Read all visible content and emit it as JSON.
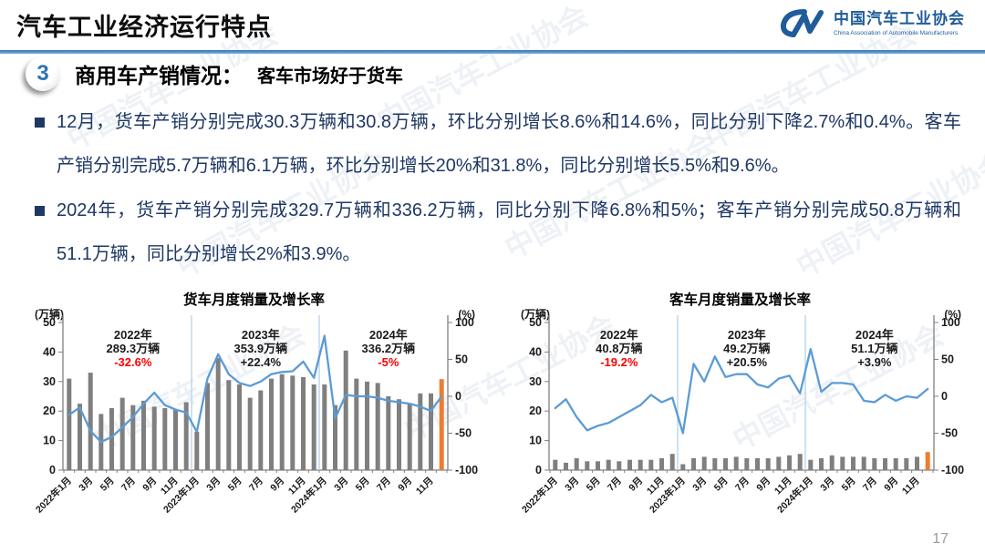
{
  "header": {
    "title": "汽车工业经济运行特点",
    "logo": {
      "org_cn": "中国汽车工业协会",
      "org_en": "China Association of Automobile Manufacturers"
    }
  },
  "section": {
    "number": "3",
    "heading_main": "商用车产销情况：",
    "heading_sub": "客车市场好于货车"
  },
  "bullets": [
    {
      "text": "12月，货车产销分别完成30.3万辆和30.8万辆，环比分别增长8.6%和14.6%，同比分别下降2.7%和0.4%。客车产销分别完成5.7万辆和6.1万辆，环比分别增长20%和31.8%，同比分别增长5.5%和9.6%。"
    },
    {
      "text": "2024年，货车产销分别完成329.7万辆和336.2万辆，同比分别下降6.8%和5%；客车产销分别完成50.8万辆和51.1万辆，同比分别增长2%和3.9%。"
    }
  ],
  "page_number": "17",
  "watermark_text": "中国汽车工业协会",
  "colors": {
    "accent_blue": "#2e74b5",
    "text_navy": "#1f3864",
    "bar_gray": "#7f7f7f",
    "highlight_orange": "#ed7d31",
    "line_blue": "#5b9bd5",
    "negative_red": "#ff0000"
  },
  "chart_data": [
    {
      "id": "truck-monthly-chart",
      "type": "bar",
      "title": "货车月度销量及增长率",
      "left_axis_label": "(万辆)",
      "right_axis_label": "(%)",
      "left_axis": {
        "min": 0,
        "max": 50,
        "step": 10
      },
      "right_axis": {
        "min": -100,
        "max": 100,
        "step": 50
      },
      "x_tick_labels": [
        "2022年1月",
        "3月",
        "5月",
        "7月",
        "9月",
        "11月",
        "2023年1月",
        "3月",
        "5月",
        "7月",
        "9月",
        "11月",
        "2024年1月",
        "3月",
        "5月",
        "7月",
        "9月",
        "11月"
      ],
      "bars_name": "月度销量(万辆)",
      "bars": [
        31,
        22.5,
        33,
        19,
        21,
        24.5,
        22,
        23.5,
        21.5,
        21,
        20.5,
        23,
        13,
        29.5,
        38,
        30.5,
        29,
        24.5,
        27,
        31,
        32.5,
        32,
        31.5,
        29,
        29,
        22,
        40.5,
        31,
        30,
        29.5,
        25,
        24,
        22.5,
        26,
        26,
        30.8
      ],
      "line_name": "增长率(%)",
      "line": [
        -25,
        -15,
        -47,
        -62,
        -55,
        -42,
        -28,
        -10,
        5,
        -12,
        -18,
        -22,
        -48,
        24,
        57,
        30,
        18,
        14,
        20,
        30,
        33,
        34,
        47,
        25,
        82,
        -30,
        2,
        0,
        0,
        -2,
        -6,
        -8,
        -10,
        -14,
        -20,
        0
      ],
      "bar_color": "#7f7f7f",
      "last_bar_color": "#ed7d31",
      "line_color": "#5b9bd5",
      "divider_color": "#bdd7ee",
      "divider_indices": [
        12,
        24
      ],
      "annotations": [
        {
          "year": "2022年",
          "total": "289.3万辆",
          "growth": "-32.6%",
          "growth_color": "#ff0000"
        },
        {
          "year": "2023年",
          "total": "353.9万辆",
          "growth": "+22.4%",
          "growth_color": "#1a1a1a"
        },
        {
          "year": "2024年",
          "total": "336.2万辆",
          "growth": "-5%",
          "growth_color": "#ff0000"
        }
      ]
    },
    {
      "id": "bus-monthly-chart",
      "type": "bar",
      "title": "客车月度销量及增长率",
      "left_axis_label": "(万辆)",
      "right_axis_label": "(%)",
      "left_axis": {
        "min": 0,
        "max": 50,
        "step": 10
      },
      "right_axis": {
        "min": -100,
        "max": 100,
        "step": 50
      },
      "x_tick_labels": [
        "2022年1月",
        "3月",
        "5月",
        "7月",
        "9月",
        "11月",
        "2023年1月",
        "3月",
        "5月",
        "7月",
        "9月",
        "11月",
        "2024年1月",
        "3月",
        "5月",
        "7月",
        "9月",
        "11月"
      ],
      "bars_name": "月度销量(万辆)",
      "bars": [
        3.5,
        2.5,
        4,
        3,
        3,
        3.5,
        3,
        3.5,
        3.5,
        3.5,
        4,
        5.5,
        2,
        4,
        4.5,
        4,
        4,
        4.5,
        4,
        4,
        4,
        4.5,
        5,
        5.5,
        3.5,
        4,
        5,
        4.5,
        4.5,
        4.5,
        4,
        4,
        4,
        4,
        4.5,
        6.1
      ],
      "line_name": "增长率(%)",
      "line": [
        -16,
        -4,
        -28,
        -46,
        -40,
        -36,
        -28,
        -20,
        -12,
        2,
        -8,
        -2,
        -50,
        44,
        20,
        54,
        26,
        30,
        30,
        16,
        12,
        24,
        28,
        4,
        64,
        6,
        18,
        18,
        16,
        -6,
        -8,
        2,
        -6,
        0,
        -2,
        10
      ],
      "bar_color": "#7f7f7f",
      "last_bar_color": "#ed7d31",
      "line_color": "#5b9bd5",
      "divider_color": "#bdd7ee",
      "divider_indices": [
        12,
        24
      ],
      "annotations": [
        {
          "year": "2022年",
          "total": "40.8万辆",
          "growth": "-19.2%",
          "growth_color": "#ff0000"
        },
        {
          "year": "2023年",
          "total": "49.2万辆",
          "growth": "+20.5%",
          "growth_color": "#1a1a1a"
        },
        {
          "year": "2024年",
          "total": "51.1万辆",
          "growth": "+3.9%",
          "growth_color": "#1a1a1a"
        }
      ]
    }
  ]
}
